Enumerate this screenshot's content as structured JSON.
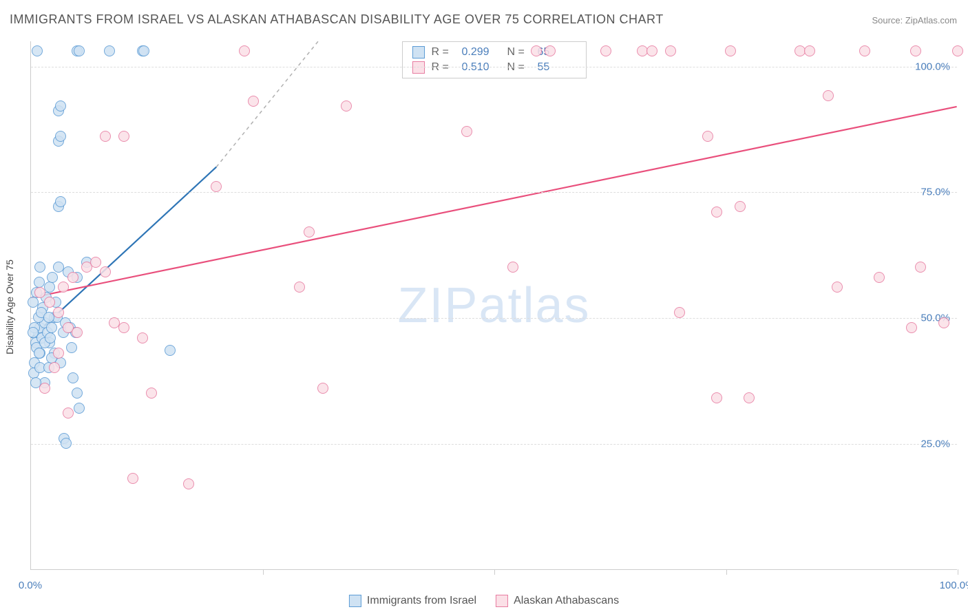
{
  "title": "IMMIGRANTS FROM ISRAEL VS ALASKAN ATHABASCAN DISABILITY AGE OVER 75 CORRELATION CHART",
  "source_label": "Source: ZipAtlas.com",
  "ylabel": "Disability Age Over 75",
  "watermark_a": "ZIP",
  "watermark_b": "atlas",
  "watermark_color": "#d9e6f5",
  "chart": {
    "type": "scatter",
    "xlim": [
      0,
      100
    ],
    "ylim": [
      0,
      105
    ],
    "xtick_positions": [
      0,
      25,
      50,
      75,
      100
    ],
    "xtick_labels": [
      "0.0%",
      "",
      "",
      "",
      "100.0%"
    ],
    "ytick_positions": [
      25,
      50,
      75,
      100
    ],
    "ytick_labels": [
      "25.0%",
      "50.0%",
      "75.0%",
      "100.0%"
    ],
    "tick_label_color": "#4a7ebb",
    "grid_color": "#dddddd",
    "axis_color": "#cccccc",
    "background_color": "#ffffff",
    "marker_radius": 8,
    "marker_stroke_width": 1.2,
    "trend_line_width": 2.2
  },
  "series": [
    {
      "id": "israel",
      "label": "Immigrants from Israel",
      "fill": "#cfe2f3",
      "stroke": "#5b9bd5",
      "line_color": "#2e75b6",
      "dash_color": "#b0b0b0",
      "R": "0.299",
      "N": "65",
      "trend": {
        "x1": 0,
        "y1": 46,
        "x2": 20,
        "y2": 80,
        "dash_x2": 31,
        "dash_y2": 105
      },
      "points": [
        [
          0.5,
          45
        ],
        [
          0.8,
          47
        ],
        [
          1.0,
          48
        ],
        [
          1.2,
          46
        ],
        [
          0.6,
          44
        ],
        [
          1.5,
          49
        ],
        [
          1.8,
          47
        ],
        [
          2.0,
          45
        ],
        [
          2.2,
          48
        ],
        [
          2.5,
          50
        ],
        [
          1.0,
          43
        ],
        [
          0.4,
          41
        ],
        [
          0.3,
          39
        ],
        [
          0.8,
          50
        ],
        [
          1.3,
          52
        ],
        [
          1.6,
          54
        ],
        [
          2.0,
          56
        ],
        [
          2.3,
          58
        ],
        [
          0.2,
          53
        ],
        [
          0.6,
          55
        ],
        [
          0.9,
          57
        ],
        [
          1.0,
          60
        ],
        [
          3.0,
          60
        ],
        [
          4.0,
          59
        ],
        [
          5.0,
          58
        ],
        [
          6.0,
          61
        ],
        [
          2.5,
          43
        ],
        [
          3.2,
          41
        ],
        [
          4.4,
          44
        ],
        [
          4.5,
          38
        ],
        [
          5.0,
          35
        ],
        [
          5.2,
          32
        ],
        [
          3.6,
          26
        ],
        [
          3.8,
          25
        ],
        [
          3.0,
          72
        ],
        [
          3.2,
          73
        ],
        [
          3.0,
          85
        ],
        [
          3.2,
          86
        ],
        [
          3.0,
          91
        ],
        [
          3.2,
          92
        ],
        [
          5.0,
          103
        ],
        [
          5.2,
          103
        ],
        [
          8.5,
          103
        ],
        [
          12.0,
          103
        ],
        [
          12.2,
          103
        ],
        [
          15.0,
          43.5
        ],
        [
          1.5,
          37
        ],
        [
          0.5,
          37
        ],
        [
          1.0,
          40
        ],
        [
          1.9,
          40
        ],
        [
          2.2,
          42
        ],
        [
          0.7,
          103
        ],
        [
          2.8,
          50
        ],
        [
          3.5,
          47
        ],
        [
          3.7,
          49
        ],
        [
          4.2,
          48
        ],
        [
          4.8,
          47
        ],
        [
          1.1,
          51
        ],
        [
          2.7,
          53
        ],
        [
          1.9,
          50
        ],
        [
          0.4,
          48
        ],
        [
          0.2,
          47
        ],
        [
          1.5,
          45
        ],
        [
          2.1,
          46
        ],
        [
          0.9,
          43
        ]
      ]
    },
    {
      "id": "athabascan",
      "label": "Alaskan Athabascans",
      "fill": "#fbe0e7",
      "stroke": "#e77ba0",
      "line_color": "#e94f7c",
      "R": "0.510",
      "N": "55",
      "trend": {
        "x1": 0,
        "y1": 54,
        "x2": 100,
        "y2": 92
      },
      "points": [
        [
          1.0,
          55
        ],
        [
          2.0,
          53
        ],
        [
          3.0,
          51
        ],
        [
          4.0,
          48
        ],
        [
          5.0,
          47
        ],
        [
          3.5,
          56
        ],
        [
          4.5,
          58
        ],
        [
          6.0,
          60
        ],
        [
          7.0,
          61
        ],
        [
          8.0,
          59
        ],
        [
          9.0,
          49
        ],
        [
          10.0,
          48
        ],
        [
          12.0,
          46
        ],
        [
          3.0,
          43
        ],
        [
          2.5,
          40
        ],
        [
          1.5,
          36
        ],
        [
          4.0,
          31
        ],
        [
          11.0,
          18
        ],
        [
          17.0,
          17
        ],
        [
          13.0,
          35
        ],
        [
          31.5,
          36
        ],
        [
          8.0,
          86
        ],
        [
          10.0,
          86
        ],
        [
          20.0,
          76
        ],
        [
          24.0,
          93
        ],
        [
          23.0,
          103
        ],
        [
          34.0,
          92
        ],
        [
          30.0,
          67
        ],
        [
          29.0,
          56
        ],
        [
          47.0,
          87
        ],
        [
          54.5,
          103
        ],
        [
          62.0,
          103
        ],
        [
          52.0,
          60
        ],
        [
          56.0,
          103
        ],
        [
          66.0,
          103
        ],
        [
          69.0,
          103
        ],
        [
          67.0,
          103
        ],
        [
          73.0,
          86
        ],
        [
          75.5,
          103
        ],
        [
          76.5,
          72
        ],
        [
          74.0,
          71
        ],
        [
          70.0,
          51
        ],
        [
          77.5,
          34
        ],
        [
          74.0,
          34
        ],
        [
          86.0,
          94
        ],
        [
          87.0,
          56
        ],
        [
          91.5,
          58
        ],
        [
          96.0,
          60
        ],
        [
          83.0,
          103
        ],
        [
          84.0,
          103
        ],
        [
          90.0,
          103
        ],
        [
          95.0,
          48
        ],
        [
          100.0,
          103
        ],
        [
          98.5,
          49
        ],
        [
          95.5,
          103
        ]
      ]
    }
  ],
  "legend_R_label": "R =",
  "legend_N_label": "N ="
}
